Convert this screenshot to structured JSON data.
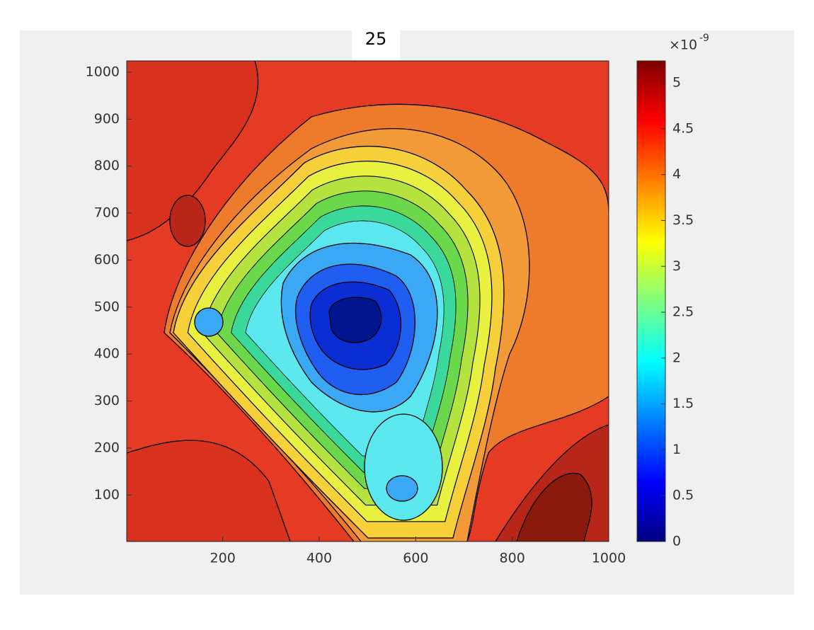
{
  "chart_data": {
    "type": "contour",
    "title": "25",
    "xlim": [
      1,
      1000
    ],
    "xticks": [
      200,
      400,
      600,
      800,
      1000
    ],
    "ylim": [
      1,
      1024
    ],
    "yticks": [
      100,
      200,
      300,
      400,
      500,
      600,
      700,
      800,
      900,
      1000
    ],
    "colormap": "jet",
    "clim": [
      0,
      5.24
    ],
    "colorbar_ticks": [
      0,
      0.5,
      1,
      1.5,
      2,
      2.5,
      3,
      3.5,
      4,
      4.5,
      5
    ],
    "colorbar_exponent_base": "×10",
    "colorbar_exponent": "-9"
  }
}
